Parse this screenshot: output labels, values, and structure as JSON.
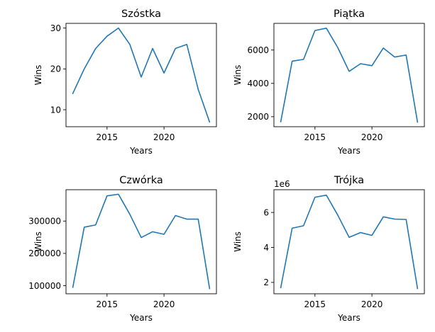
{
  "figure": {
    "line_color": "#1f77b4",
    "background": "#ffffff"
  },
  "chart_data": [
    {
      "type": "line",
      "title": "Szóstka",
      "xlabel": "Years",
      "ylabel": "Wins",
      "x": [
        2012,
        2013,
        2014,
        2015,
        2016,
        2017,
        2018,
        2019,
        2020,
        2021,
        2022,
        2023,
        2024
      ],
      "y": [
        14,
        20,
        25,
        28,
        30,
        26,
        18,
        25,
        19,
        25,
        26,
        15,
        7
      ],
      "xlim": [
        2011.4,
        2024.6
      ],
      "ylim": [
        5.85,
        31.15
      ],
      "xticks": [
        2015,
        2020
      ],
      "xtick_labels": [
        "2015",
        "2020"
      ],
      "yticks": [
        10,
        20,
        30
      ],
      "ytick_labels": [
        "10",
        "20",
        "30"
      ],
      "offset_text": "",
      "grid": false,
      "legend": "none"
    },
    {
      "type": "line",
      "title": "Piątka",
      "xlabel": "Years",
      "ylabel": "Wins",
      "x": [
        2012,
        2013,
        2014,
        2015,
        2016,
        2017,
        2018,
        2019,
        2020,
        2021,
        2022,
        2023,
        2024
      ],
      "y": [
        1700,
        5330,
        5440,
        7170,
        7310,
        6150,
        4720,
        5180,
        5060,
        6120,
        5580,
        5700,
        1680
      ],
      "xlim": [
        2011.4,
        2024.6
      ],
      "ylim": [
        1400,
        7600
      ],
      "xticks": [
        2015,
        2020
      ],
      "xtick_labels": [
        "2015",
        "2020"
      ],
      "yticks": [
        2000,
        4000,
        6000
      ],
      "ytick_labels": [
        "2000",
        "4000",
        "6000"
      ],
      "offset_text": "",
      "grid": false,
      "legend": "none"
    },
    {
      "type": "line",
      "title": "Czwórka",
      "xlabel": "Years",
      "ylabel": "Wins",
      "x": [
        2012,
        2013,
        2014,
        2015,
        2016,
        2017,
        2018,
        2019,
        2020,
        2021,
        2022,
        2023,
        2024
      ],
      "y": [
        95000,
        281000,
        288000,
        378000,
        383000,
        321000,
        249000,
        267000,
        259000,
        317000,
        306000,
        306000,
        91000
      ],
      "xlim": [
        2011.4,
        2024.6
      ],
      "ylim": [
        75000,
        397000
      ],
      "xticks": [
        2015,
        2020
      ],
      "xtick_labels": [
        "2015",
        "2020"
      ],
      "yticks": [
        100000,
        200000,
        300000
      ],
      "ytick_labels": [
        "100000",
        "200000",
        "300000"
      ],
      "offset_text": "",
      "grid": false,
      "legend": "none"
    },
    {
      "type": "line",
      "title": "Trójka",
      "xlabel": "Years",
      "ylabel": "Wins",
      "x": [
        2012,
        2013,
        2014,
        2015,
        2016,
        2017,
        2018,
        2019,
        2020,
        2021,
        2022,
        2023,
        2024
      ],
      "y": [
        1.7,
        5.1,
        5.24,
        6.87,
        6.99,
        5.85,
        4.58,
        4.85,
        4.69,
        5.75,
        5.62,
        5.6,
        1.65
      ],
      "xlim": [
        2011.4,
        2024.6
      ],
      "ylim": [
        1.35,
        7.3
      ],
      "xticks": [
        2015,
        2020
      ],
      "xtick_labels": [
        "2015",
        "2020"
      ],
      "yticks": [
        2,
        4,
        6
      ],
      "ytick_labels": [
        "2",
        "4",
        "6"
      ],
      "offset_text": "1e6",
      "grid": false,
      "legend": "none"
    }
  ]
}
